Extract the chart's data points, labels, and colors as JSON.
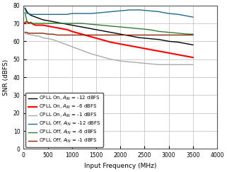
{
  "title": "",
  "xlabel": "Input Frequency (MHz)",
  "ylabel": "SNR (dBFS)",
  "xlim": [
    0,
    4000
  ],
  "ylim": [
    0,
    80
  ],
  "yticks": [
    0,
    10,
    20,
    30,
    40,
    50,
    60,
    70,
    80
  ],
  "xticks": [
    0,
    500,
    1000,
    1500,
    2000,
    2500,
    3000,
    3500,
    4000
  ],
  "series": [
    {
      "label": "CPLL On, $A_{IN}$ = -12 dBFS",
      "color": "#000000",
      "linewidth": 1.0,
      "x": [
        30,
        70,
        100,
        150,
        200,
        250,
        300,
        350,
        400,
        500,
        600,
        700,
        800,
        900,
        1000,
        1200,
        1400,
        1600,
        1800,
        2000,
        2200,
        2400,
        2600,
        2800,
        3000,
        3200,
        3400,
        3500
      ],
      "y": [
        78.5,
        76.5,
        75.5,
        74.5,
        74.0,
        73.5,
        73.0,
        72.5,
        72.0,
        71.5,
        71.0,
        70.5,
        70.0,
        69.5,
        69.0,
        68.0,
        67.0,
        66.0,
        65.0,
        64.0,
        63.0,
        62.0,
        61.5,
        61.0,
        60.0,
        59.5,
        58.5,
        58.0
      ]
    },
    {
      "label": "CPLL On, $A_{IN}$ = -6 dBFS",
      "color": "#ff0000",
      "linewidth": 1.5,
      "x": [
        30,
        70,
        100,
        150,
        200,
        250,
        300,
        350,
        400,
        500,
        600,
        700,
        800,
        900,
        1000,
        1200,
        1400,
        1600,
        1800,
        2000,
        2200,
        2400,
        2600,
        2800,
        3000,
        3200,
        3400,
        3500
      ],
      "y": [
        70.5,
        71.0,
        70.0,
        70.5,
        69.5,
        69.0,
        69.0,
        69.0,
        69.0,
        68.5,
        68.0,
        67.5,
        67.0,
        66.5,
        65.5,
        64.0,
        62.5,
        61.0,
        59.5,
        58.5,
        57.5,
        56.5,
        55.5,
        54.5,
        53.5,
        52.5,
        51.5,
        51.0
      ]
    },
    {
      "label": "CPLL On, $A_{IN}$ = -1 dBFS",
      "color": "#aaaaaa",
      "linewidth": 1.0,
      "x": [
        30,
        70,
        100,
        150,
        200,
        250,
        300,
        350,
        400,
        500,
        600,
        700,
        800,
        900,
        1000,
        1200,
        1400,
        1600,
        1800,
        2000,
        2200,
        2400,
        2600,
        2800,
        3000,
        3200,
        3400,
        3500
      ],
      "y": [
        64.5,
        64.0,
        64.0,
        63.5,
        63.5,
        63.0,
        63.0,
        62.5,
        62.0,
        61.5,
        61.0,
        60.0,
        59.0,
        58.0,
        57.0,
        55.0,
        53.0,
        51.5,
        50.0,
        49.0,
        48.5,
        48.0,
        47.5,
        47.0,
        47.0,
        47.0,
        47.0,
        47.0
      ]
    },
    {
      "label": "CPLL Off, $A_{IN}$ = -12 dBFS",
      "color": "#1f6b8e",
      "linewidth": 1.0,
      "x": [
        30,
        70,
        100,
        150,
        200,
        250,
        300,
        350,
        400,
        500,
        600,
        700,
        800,
        900,
        1000,
        1200,
        1400,
        1600,
        1800,
        2000,
        2200,
        2400,
        2600,
        2800,
        3000,
        3200,
        3400,
        3500
      ],
      "y": [
        78.0,
        75.5,
        75.5,
        75.0,
        75.0,
        75.0,
        75.0,
        75.0,
        75.0,
        75.0,
        75.0,
        75.0,
        75.0,
        75.0,
        75.5,
        75.5,
        75.5,
        76.0,
        76.5,
        77.0,
        77.5,
        77.5,
        77.0,
        76.5,
        75.5,
        75.0,
        74.0,
        73.5
      ]
    },
    {
      "label": "CPLL Off, $A_{IN}$ = -6 dBFS",
      "color": "#2e7d32",
      "linewidth": 1.0,
      "x": [
        30,
        70,
        100,
        150,
        200,
        250,
        300,
        350,
        400,
        500,
        600,
        700,
        800,
        900,
        1000,
        1200,
        1400,
        1600,
        1800,
        2000,
        2200,
        2400,
        2600,
        2800,
        3000,
        3200,
        3400,
        3500
      ],
      "y": [
        76.0,
        71.0,
        70.5,
        70.0,
        70.0,
        70.0,
        70.0,
        70.0,
        70.0,
        70.0,
        70.0,
        70.0,
        70.0,
        70.0,
        70.0,
        70.0,
        69.5,
        69.0,
        68.5,
        68.0,
        67.5,
        67.0,
        66.5,
        65.5,
        65.0,
        64.5,
        64.0,
        64.0
      ]
    },
    {
      "label": "CPLL Off, $A_{IN}$ = -1 dBFS",
      "color": "#8b2500",
      "linewidth": 1.0,
      "x": [
        30,
        70,
        100,
        150,
        200,
        250,
        300,
        350,
        400,
        500,
        600,
        700,
        800,
        900,
        1000,
        1200,
        1400,
        1600,
        1800,
        2000,
        2200,
        2400,
        2600,
        2800,
        3000,
        3200,
        3400,
        3500
      ],
      "y": [
        65.0,
        65.0,
        64.5,
        64.5,
        64.5,
        64.5,
        64.5,
        64.5,
        64.5,
        64.0,
        64.0,
        63.5,
        63.5,
        63.5,
        63.5,
        63.5,
        63.5,
        63.5,
        63.5,
        63.5,
        63.5,
        63.5,
        63.5,
        63.5,
        63.5,
        63.5,
        63.5,
        63.5
      ]
    }
  ],
  "legend_loc": "lower left",
  "legend_fontsize": 5.0,
  "axis_fontsize": 6.5,
  "tick_fontsize": 5.5,
  "background_color": "#ffffff"
}
